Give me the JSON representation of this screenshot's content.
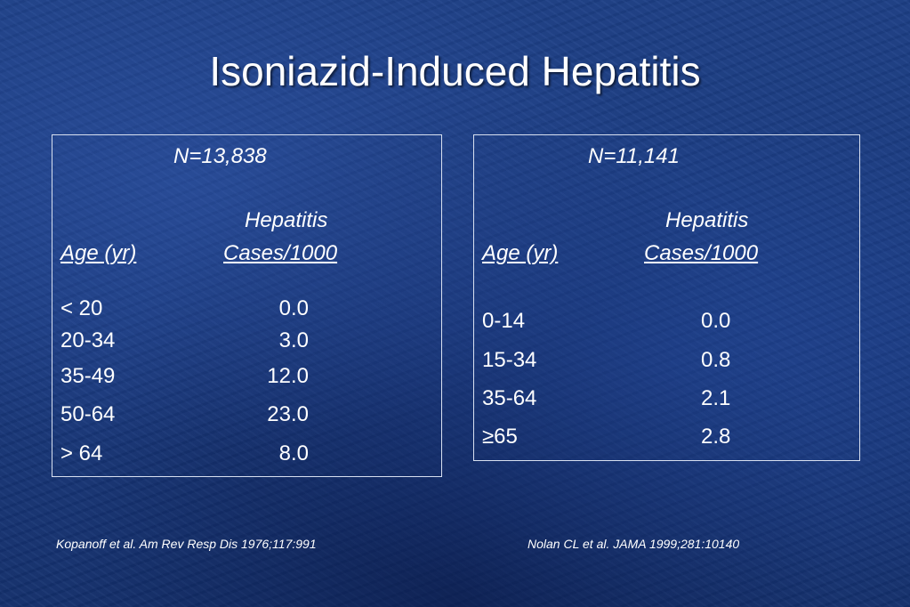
{
  "title": "Isoniazid-Induced Hepatitis",
  "left_table": {
    "n_label": "N=13,838",
    "header_top": "Hepatitis",
    "col_age": "Age (yr)",
    "col_cases": "Cases/1000",
    "rows": [
      {
        "age": "< 20",
        "cases": "0.0"
      },
      {
        "age": "20-34",
        "cases": "3.0"
      },
      {
        "age": "35-49",
        "cases": "12.0"
      },
      {
        "age": "50-64",
        "cases": "23.0"
      },
      {
        "age": "> 64",
        "cases": "8.0"
      }
    ],
    "citation": "Kopanoff et al. Am Rev Resp Dis 1976;117:991"
  },
  "right_table": {
    "n_label": "N=11,141",
    "header_top": "Hepatitis",
    "col_age": "Age (yr)",
    "col_cases": "Cases/1000",
    "rows": [
      {
        "age": "0-14",
        "cases": "0.0"
      },
      {
        "age": "15-34",
        "cases": "0.8"
      },
      {
        "age": "35-64",
        "cases": "2.1"
      },
      {
        "age": "≥65",
        "cases": "2.8"
      }
    ],
    "citation": "Nolan CL et al. JAMA 1999;281:10140"
  }
}
